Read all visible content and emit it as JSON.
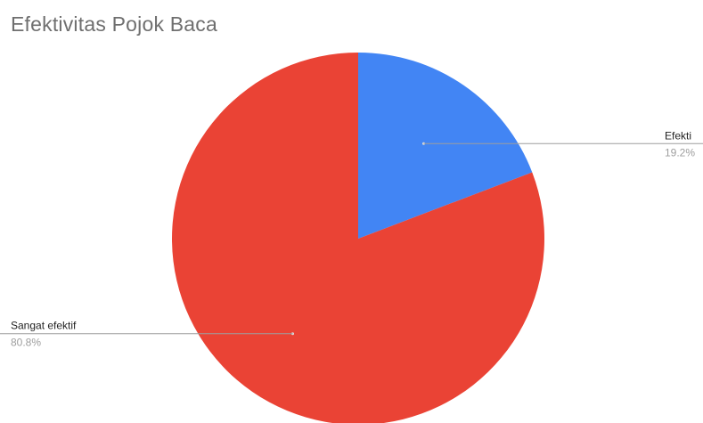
{
  "colors": {
    "background": "#ffffff",
    "slice_efektif": "#4285f4",
    "slice_sangat_efektif": "#ea4335",
    "leader_line": "#9e9e9e"
  },
  "chart_data": {
    "type": "pie",
    "title": "Efektivitas Pojok Baca",
    "start_angle_deg": 0,
    "legend": "none",
    "slices": [
      {
        "label": "Efektif",
        "display_label": "Efekti",
        "value": 19.2,
        "value_label": "19.2%",
        "color": "#4285f4"
      },
      {
        "label": "Sangat efektif",
        "display_label": "Sangat efektif",
        "value": 80.8,
        "value_label": "80.8%",
        "color": "#ea4335"
      }
    ]
  }
}
